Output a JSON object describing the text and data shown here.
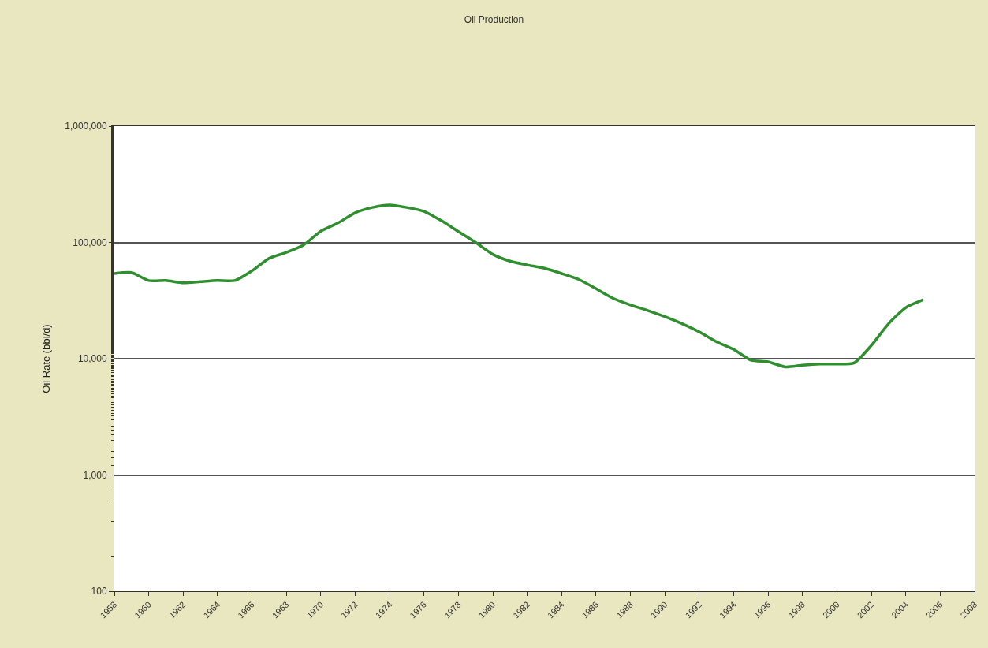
{
  "chart_data": {
    "type": "line",
    "title": "Oil Production",
    "ylabel": "Oil Rate (bbl/d)",
    "x": [
      1958,
      1959,
      1960,
      1961,
      1962,
      1963,
      1964,
      1965,
      1966,
      1967,
      1968,
      1969,
      1970,
      1971,
      1972,
      1973,
      1974,
      1975,
      1976,
      1977,
      1978,
      1979,
      1980,
      1981,
      1982,
      1983,
      1984,
      1985,
      1986,
      1987,
      1988,
      1989,
      1990,
      1991,
      1992,
      1993,
      1994,
      1995,
      1996,
      1997,
      1998,
      1999,
      2000,
      2001,
      2002,
      2003,
      2004,
      2005
    ],
    "series": [
      {
        "color": "#2f8f2f",
        "values": [
          54000,
          55000,
          47000,
          47000,
          45000,
          46000,
          47000,
          47000,
          57000,
          73000,
          82000,
          95000,
          125000,
          147000,
          180000,
          200000,
          210000,
          200000,
          185000,
          154000,
          124000,
          100000,
          79000,
          69000,
          64000,
          60000,
          54000,
          48000,
          40000,
          33000,
          29000,
          26000,
          23000,
          20000,
          17000,
          14000,
          12000,
          9700,
          9400,
          8500,
          8800,
          9000,
          9000,
          9200,
          13000,
          20000,
          27500,
          32000
        ]
      }
    ],
    "log": "y",
    "ylim": [
      100,
      1000000
    ],
    "yticks": [
      {
        "value": 100,
        "label": "100"
      },
      {
        "value": 1000,
        "label": "1,000"
      },
      {
        "value": 10000,
        "label": "10,000"
      },
      {
        "value": 100000,
        "label": "100,000"
      },
      {
        "value": 1000000,
        "label": "1,000,000"
      }
    ],
    "xlim": [
      1958,
      2008
    ],
    "xticks": [
      1958,
      1960,
      1962,
      1964,
      1966,
      1968,
      1970,
      1972,
      1974,
      1976,
      1978,
      1980,
      1982,
      1984,
      1986,
      1988,
      1990,
      1992,
      1994,
      1996,
      1998,
      2000,
      2002,
      2004,
      2006,
      2008
    ],
    "grid": "y",
    "marker": "none",
    "line_style": "solid"
  }
}
